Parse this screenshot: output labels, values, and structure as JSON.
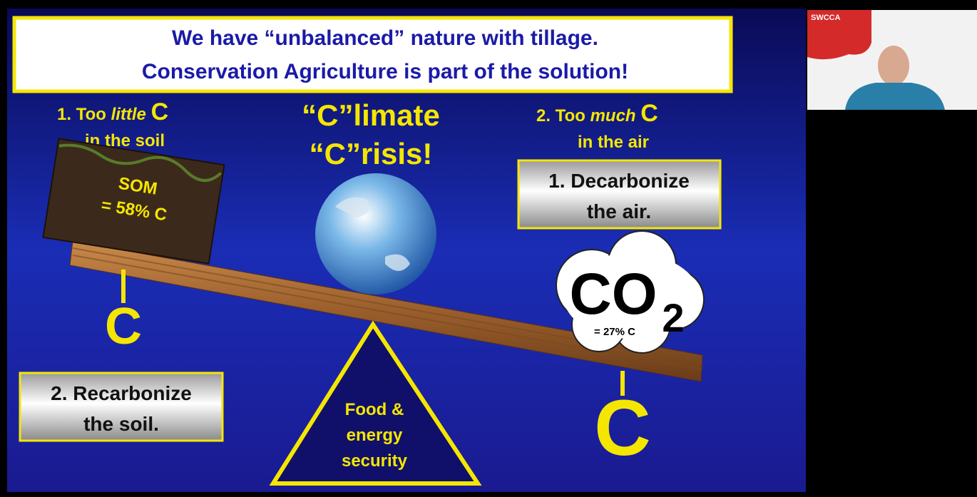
{
  "slide": {
    "title": [
      "We have “unbalanced” nature with tillage.",
      "Conservation Agriculture is part of the solution!"
    ],
    "left_heading": {
      "prefix": "1. Too",
      "emphasis": "little",
      "letter": "C",
      "line2": "in the soil"
    },
    "center_heading": [
      "“C”limate",
      "“C”risis!"
    ],
    "right_heading": {
      "prefix": "2. Too",
      "emphasis": "much",
      "letter": "C",
      "line2": "in the air"
    },
    "decarbonize_box": [
      "1. Decarbonize",
      "the air."
    ],
    "soil_label": [
      "SOM",
      "= 58% C"
    ],
    "left_weight": "C",
    "right_weight": "C",
    "recarbonize_box": [
      "2. Recarbonize",
      "the soil."
    ],
    "cloud": {
      "formula": "CO",
      "subscript": "2",
      "note": "= 27% C"
    },
    "fulcrum": [
      "Food &",
      "energy",
      "security"
    ]
  },
  "webcam": {
    "logo": "SWCCA"
  }
}
